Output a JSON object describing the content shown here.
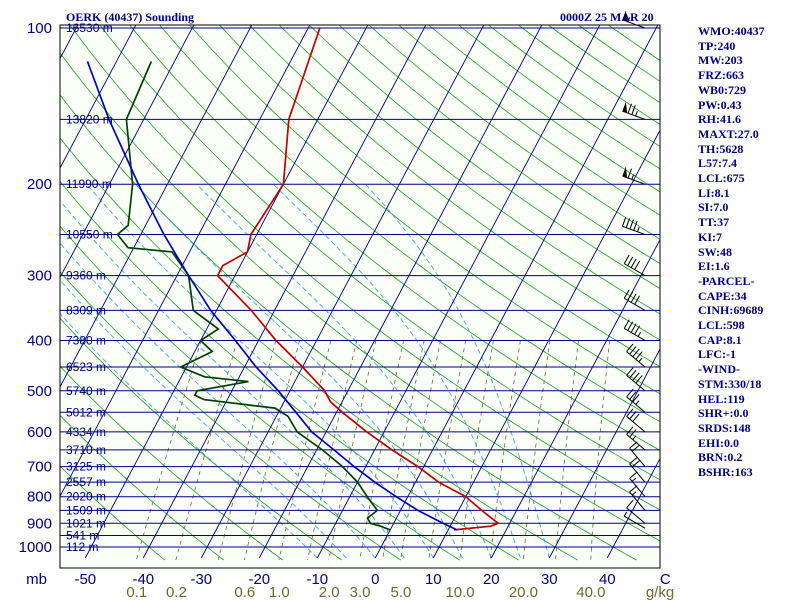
{
  "header": {
    "title": "OERK (40437) Sounding",
    "time": "0000Z 25 MAR 20"
  },
  "colors": {
    "background": "#ffffff",
    "plot_background": "#fafff8",
    "isobar": "#000080",
    "isotherm": "#000080",
    "dry_adiabat": "#20a020",
    "moist_adiabat": "#4aa0e0",
    "mixing_ratio": "#6b6b30",
    "temperature": "#c00000",
    "dewpoint": "#004000",
    "parcel": "#0000c0",
    "stats_text": "#000080"
  },
  "chart_data": {
    "type": "skew-t",
    "pressure_axis": {
      "label": "mb",
      "ticks": [
        "100",
        "200",
        "300",
        "400",
        "500",
        "600",
        "700",
        "800",
        "900",
        "1000"
      ],
      "range": [
        100,
        1050
      ]
    },
    "temperature_axis": {
      "label": "C",
      "ticks": [
        -50,
        -40,
        -30,
        -20,
        -10,
        0,
        10,
        20,
        30,
        40
      ],
      "tick_labels": [
        "-50",
        "-40",
        "-30",
        "-20",
        "-10",
        "0",
        "10",
        "20",
        "30",
        "40"
      ]
    },
    "mixing_ratio_axis": {
      "label": "g/kg",
      "ticks": [
        "0.1",
        "0.2",
        "0.6",
        "1.0",
        "2.0",
        "3.0",
        "5.0",
        "10.0",
        "20.0",
        "40.0"
      ]
    },
    "heights": [
      {
        "p": 100,
        "label": "16530 m"
      },
      {
        "p": 150,
        "label": "13820 m"
      },
      {
        "p": 200,
        "label": "11990 m"
      },
      {
        "p": 250,
        "label": "10550 m"
      },
      {
        "p": 300,
        "label": "9360 m"
      },
      {
        "p": 350,
        "label": "8309 m"
      },
      {
        "p": 400,
        "label": "7380 m"
      },
      {
        "p": 450,
        "label": "6523 m"
      },
      {
        "p": 500,
        "label": "5740 m"
      },
      {
        "p": 550,
        "label": "5012 m"
      },
      {
        "p": 600,
        "label": "4334 m"
      },
      {
        "p": 650,
        "label": "3710 m"
      },
      {
        "p": 700,
        "label": "3125 m"
      },
      {
        "p": 750,
        "label": "2557 m"
      },
      {
        "p": 800,
        "label": "2020 m"
      },
      {
        "p": 850,
        "label": "1509 m"
      },
      {
        "p": 900,
        "label": "1021 m"
      },
      {
        "p": 950,
        "label": "541 m"
      },
      {
        "p": 1000,
        "label": "112 m"
      }
    ],
    "series": [
      {
        "key": "temperature",
        "values": [
          [
            927,
            11
          ],
          [
            912,
            17
          ],
          [
            900,
            18
          ],
          [
            850,
            14
          ],
          [
            800,
            10
          ],
          [
            750,
            4
          ],
          [
            700,
            -1
          ],
          [
            650,
            -7
          ],
          [
            600,
            -13
          ],
          [
            550,
            -19
          ],
          [
            525,
            -22
          ],
          [
            500,
            -24
          ],
          [
            450,
            -30
          ],
          [
            400,
            -37
          ],
          [
            350,
            -44
          ],
          [
            300,
            -53
          ],
          [
            287,
            -53
          ],
          [
            270,
            -50
          ],
          [
            250,
            -51
          ],
          [
            200,
            -50
          ],
          [
            150,
            -55
          ],
          [
            100,
            -58
          ]
        ]
      },
      {
        "key": "dewpoint",
        "values": [
          [
            927,
            0
          ],
          [
            912,
            -2
          ],
          [
            900,
            -4
          ],
          [
            880,
            -5
          ],
          [
            850,
            -4
          ],
          [
            800,
            -7
          ],
          [
            750,
            -10
          ],
          [
            700,
            -14
          ],
          [
            650,
            -19
          ],
          [
            600,
            -25
          ],
          [
            560,
            -28
          ],
          [
            540,
            -31
          ],
          [
            520,
            -44
          ],
          [
            510,
            -46
          ],
          [
            500,
            -46
          ],
          [
            480,
            -38
          ],
          [
            470,
            -46
          ],
          [
            450,
            -51
          ],
          [
            420,
            -47
          ],
          [
            400,
            -50
          ],
          [
            380,
            -48
          ],
          [
            350,
            -54
          ],
          [
            300,
            -58
          ],
          [
            270,
            -63
          ],
          [
            265,
            -71
          ],
          [
            250,
            -74
          ],
          [
            240,
            -73
          ],
          [
            200,
            -76
          ],
          [
            150,
            -83
          ],
          [
            116,
            -84
          ]
        ]
      },
      {
        "key": "parcel",
        "values": [
          [
            927,
            11.5
          ],
          [
            900,
            8.5
          ],
          [
            850,
            3
          ],
          [
            800,
            -2
          ],
          [
            750,
            -7
          ],
          [
            700,
            -12
          ],
          [
            650,
            -17
          ],
          [
            600,
            -22.5
          ],
          [
            550,
            -27
          ],
          [
            500,
            -32
          ],
          [
            450,
            -38
          ],
          [
            400,
            -44
          ],
          [
            350,
            -51
          ],
          [
            300,
            -58
          ],
          [
            250,
            -66
          ],
          [
            200,
            -75
          ],
          [
            150,
            -86
          ],
          [
            116,
            -95
          ]
        ]
      }
    ],
    "winds": [
      {
        "p": 920,
        "dir": 300,
        "spd": 5
      },
      {
        "p": 900,
        "dir": 310,
        "spd": 10
      },
      {
        "p": 850,
        "dir": 320,
        "spd": 15
      },
      {
        "p": 800,
        "dir": 320,
        "spd": 15
      },
      {
        "p": 750,
        "dir": 320,
        "spd": 20
      },
      {
        "p": 700,
        "dir": 320,
        "spd": 20
      },
      {
        "p": 650,
        "dir": 310,
        "spd": 25
      },
      {
        "p": 600,
        "dir": 310,
        "spd": 30
      },
      {
        "p": 550,
        "dir": 310,
        "spd": 35
      },
      {
        "p": 500,
        "dir": 310,
        "spd": 40
      },
      {
        "p": 450,
        "dir": 310,
        "spd": 45
      },
      {
        "p": 400,
        "dir": 300,
        "spd": 45
      },
      {
        "p": 350,
        "dir": 300,
        "spd": 40
      },
      {
        "p": 300,
        "dir": 300,
        "spd": 40
      },
      {
        "p": 250,
        "dir": 290,
        "spd": 45
      },
      {
        "p": 200,
        "dir": 290,
        "spd": 65
      },
      {
        "p": 150,
        "dir": 290,
        "spd": 75
      },
      {
        "p": 100,
        "dir": 290,
        "spd": 55
      }
    ]
  },
  "stats": [
    "WMO:40437",
    "TP:240",
    "MW:203",
    "FRZ:663",
    "WB0:729",
    "PW:0.43",
    "RH:41.6",
    "MAXT:27.0",
    "TH:5628",
    "L57:7.4",
    "LCL:675",
    "LI:8.1",
    "SI:7.0",
    "TT:37",
    "KI:7",
    "SW:48",
    "EI:1.6",
    "-PARCEL-",
    "CAPE:34",
    "CINH:69689",
    "LCL:598",
    "CAP:8.1",
    "LFC:-1",
    "-WIND-",
    "STM:330/18",
    "HEL:119",
    "SHR+:0.0",
    "SRDS:148",
    "EHI:0.0",
    "BRN:0.2",
    "BSHR:163"
  ]
}
